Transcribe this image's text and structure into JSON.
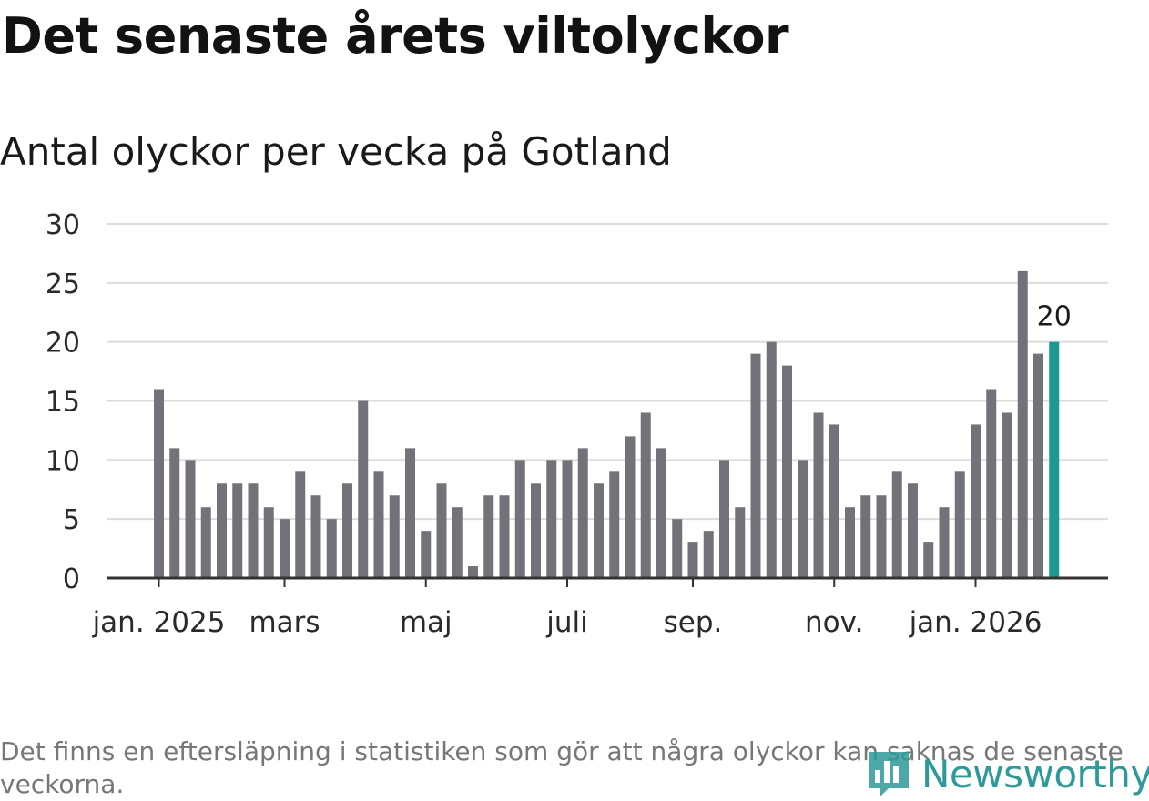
{
  "title": "Det senaste årets viltolyckor",
  "subtitle": "Antal olyckor per vecka på Gotland",
  "footnote": "Det finns en eftersläpning i statistiken som gör att några olyckor kan saknas de senaste veckorna.",
  "brand": {
    "name": "Newsworthy",
    "icon": "newsworthy-logo-icon",
    "color": "#2d9a99"
  },
  "colors": {
    "bar": "#737278",
    "highlight": "#1a9a91",
    "grid": "#dcdcdc",
    "axis": "#333333"
  },
  "chart_data": {
    "type": "bar",
    "title": "Antal olyckor per vecka på Gotland",
    "xlabel": "",
    "ylabel": "",
    "ylim": [
      0,
      30
    ],
    "yticks": [
      0,
      5,
      10,
      15,
      20,
      25,
      30
    ],
    "grid": true,
    "values": [
      16,
      11,
      10,
      6,
      8,
      8,
      8,
      6,
      5,
      9,
      7,
      5,
      8,
      15,
      9,
      7,
      11,
      4,
      8,
      6,
      1,
      7,
      7,
      10,
      8,
      10,
      10,
      11,
      8,
      9,
      12,
      14,
      11,
      5,
      3,
      4,
      10,
      6,
      19,
      20,
      18,
      10,
      14,
      13,
      6,
      7,
      7,
      9,
      8,
      3,
      6,
      9,
      13,
      16,
      14,
      26,
      19,
      20
    ],
    "highlight_index": 57,
    "highlight_label": "20",
    "xtick_labels": [
      {
        "label": "jan. 2025",
        "index": 0
      },
      {
        "label": "mars",
        "index": 8
      },
      {
        "label": "maj",
        "index": 17
      },
      {
        "label": "juli",
        "index": 26
      },
      {
        "label": "sep.",
        "index": 34
      },
      {
        "label": "nov.",
        "index": 43
      },
      {
        "label": "jan. 2026",
        "index": 52
      }
    ]
  }
}
